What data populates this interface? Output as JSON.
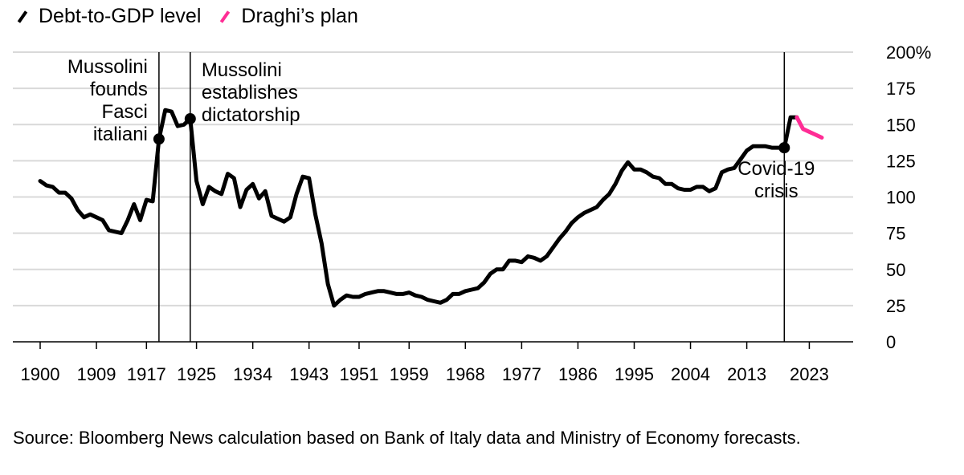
{
  "chart_data": {
    "type": "line",
    "legend": [
      {
        "name": "Debt-to-GDP level",
        "color": "#000000"
      },
      {
        "name": "Draghi’s plan",
        "color": "#ff2d95"
      }
    ],
    "ylim": [
      0,
      200
    ],
    "yticks": [
      0,
      25,
      50,
      75,
      100,
      125,
      150,
      175,
      200
    ],
    "ytick_labels": [
      "0",
      "25",
      "50",
      "75",
      "100",
      "125",
      "150",
      "175",
      "200%"
    ],
    "xlim": [
      1900,
      2026
    ],
    "xticks": [
      1900,
      1909,
      1917,
      1925,
      1934,
      1943,
      1951,
      1959,
      1968,
      1977,
      1986,
      1995,
      2004,
      2013,
      2023
    ],
    "series": [
      {
        "name": "Debt-to-GDP level",
        "color": "#000000",
        "x": [
          1900,
          1901,
          1902,
          1903,
          1904,
          1905,
          1906,
          1907,
          1908,
          1909,
          1910,
          1911,
          1912,
          1913,
          1914,
          1915,
          1916,
          1917,
          1918,
          1919,
          1920,
          1921,
          1922,
          1923,
          1924,
          1925,
          1926,
          1927,
          1928,
          1929,
          1930,
          1931,
          1932,
          1933,
          1934,
          1935,
          1936,
          1937,
          1938,
          1939,
          1940,
          1941,
          1942,
          1943,
          1944,
          1945,
          1946,
          1947,
          1948,
          1949,
          1950,
          1951,
          1952,
          1953,
          1954,
          1955,
          1956,
          1957,
          1958,
          1959,
          1960,
          1961,
          1962,
          1963,
          1964,
          1965,
          1966,
          1967,
          1968,
          1969,
          1970,
          1971,
          1972,
          1973,
          1974,
          1975,
          1976,
          1977,
          1978,
          1979,
          1980,
          1981,
          1982,
          1983,
          1984,
          1985,
          1986,
          1987,
          1988,
          1989,
          1990,
          1991,
          1992,
          1993,
          1994,
          1995,
          1996,
          1997,
          1998,
          1999,
          2000,
          2001,
          2002,
          2003,
          2004,
          2005,
          2006,
          2007,
          2008,
          2009,
          2010,
          2011,
          2012,
          2013,
          2014,
          2015,
          2016,
          2017,
          2018,
          2019,
          2020,
          2021
        ],
        "values": [
          111,
          108,
          107,
          103,
          103,
          99,
          91,
          86,
          88,
          86,
          84,
          77,
          76,
          75,
          84,
          95,
          84,
          98,
          97,
          140,
          160,
          159,
          149,
          150,
          154,
          111,
          95,
          107,
          104,
          102,
          116,
          113,
          93,
          105,
          109,
          99,
          104,
          87,
          85,
          83,
          86,
          102,
          114,
          113,
          88,
          68,
          40,
          25,
          29,
          32,
          31,
          31,
          33,
          34,
          35,
          35,
          34,
          33,
          33,
          34,
          32,
          31,
          29,
          28,
          27,
          29,
          33,
          33,
          35,
          36,
          37,
          41,
          47,
          50,
          50,
          56,
          56,
          55,
          59,
          58,
          56,
          59,
          65,
          71,
          76,
          82,
          86,
          89,
          91,
          93,
          98,
          102,
          109,
          118,
          124,
          119,
          119,
          117,
          114,
          113,
          109,
          109,
          106,
          105,
          105,
          107,
          107,
          104,
          106,
          117,
          119,
          120,
          126,
          132,
          135,
          135,
          135,
          134,
          134,
          134,
          155,
          155
        ]
      },
      {
        "name": "Draghi’s plan",
        "color": "#ff2d95",
        "x": [
          2021,
          2022,
          2023,
          2024,
          2025
        ],
        "values": [
          155,
          147,
          145,
          143,
          141
        ]
      }
    ],
    "markers": [
      {
        "x": 1919,
        "y": 140
      },
      {
        "x": 1924,
        "y": 154
      },
      {
        "x": 2019,
        "y": 134
      }
    ],
    "annotations": [
      {
        "year": 1919,
        "lines": [
          "Mussolini",
          "founds",
          "Fasci",
          "italiani"
        ]
      },
      {
        "year": 1924,
        "lines": [
          "Mussolini",
          "establishes",
          "dictatorship"
        ]
      },
      {
        "year": 2019,
        "lines": [
          "Covid-19",
          "crisis"
        ]
      }
    ],
    "source": "Source: Bloomberg News calculation based on Bank of Italy data and Ministry of Economy forecasts."
  }
}
